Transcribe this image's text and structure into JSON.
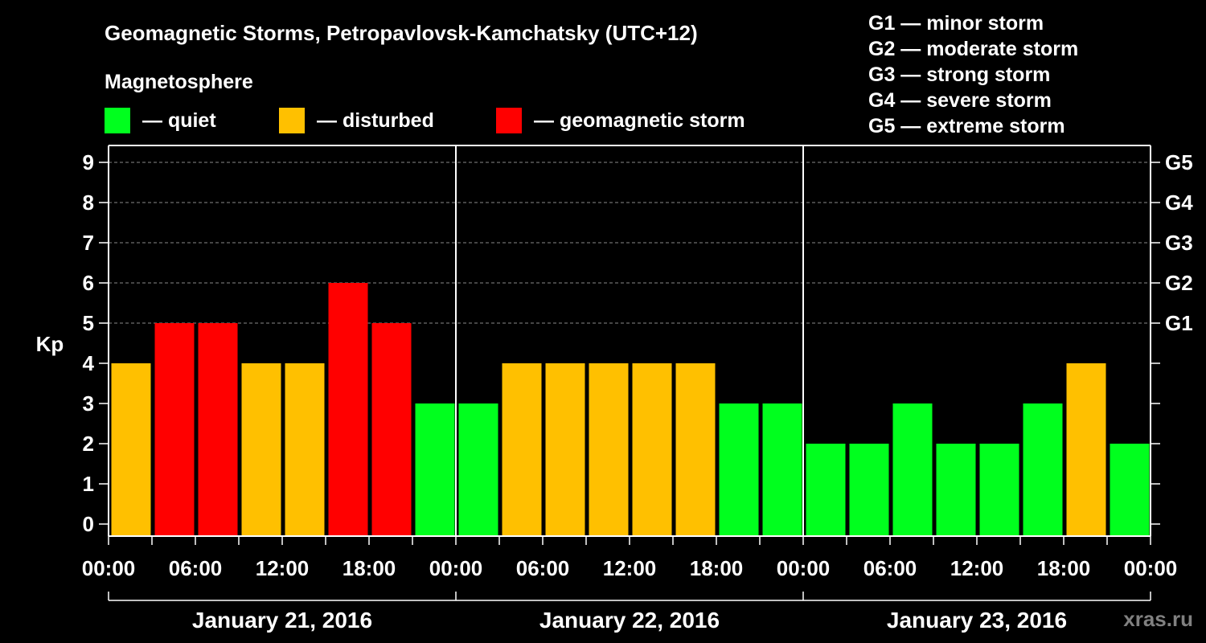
{
  "title": "Geomagnetic Storms, Petropavlovsk-Kamchatsky (UTC+12)",
  "legend": {
    "heading": "Magnetosphere",
    "items": [
      {
        "label": "— quiet",
        "color": "#00ff1e"
      },
      {
        "label": "— disturbed",
        "color": "#ffc000"
      },
      {
        "label": "— geomagnetic storm",
        "color": "#ff0000"
      }
    ]
  },
  "storm_scale": [
    "G1 — minor storm",
    "G2 — moderate storm",
    "G3 — strong storm",
    "G4 — severe storm",
    "G5 — extreme storm"
  ],
  "source": "xras.ru",
  "chart_data": {
    "type": "bar",
    "ylabel": "Kp",
    "ylim": [
      0,
      9
    ],
    "y_ticks": [
      0,
      1,
      2,
      3,
      4,
      5,
      6,
      7,
      8,
      9
    ],
    "right_ticks": [
      {
        "value": 5,
        "label": "G1"
      },
      {
        "value": 6,
        "label": "G2"
      },
      {
        "value": 7,
        "label": "G3"
      },
      {
        "value": 8,
        "label": "G4"
      },
      {
        "value": 9,
        "label": "G5"
      }
    ],
    "x_tick_labels": [
      "00:00",
      "06:00",
      "12:00",
      "18:00",
      "00:00",
      "06:00",
      "12:00",
      "18:00",
      "00:00",
      "06:00",
      "12:00",
      "18:00",
      "00:00"
    ],
    "days": [
      "January 21, 2016",
      "January 22, 2016",
      "January 23, 2016"
    ],
    "intervals_per_day": 8,
    "values": [
      4,
      5,
      5,
      4,
      4,
      6,
      5,
      3,
      3,
      4,
      4,
      4,
      4,
      4,
      3,
      3,
      2,
      2,
      3,
      2,
      2,
      3,
      4,
      2
    ],
    "color_rule": {
      "quiet_max": 3,
      "disturbed_max": 4,
      "quiet_color": "#00ff1e",
      "disturbed_color": "#ffc000",
      "storm_color": "#ff0000"
    },
    "grid": true,
    "grid_from": 5
  }
}
